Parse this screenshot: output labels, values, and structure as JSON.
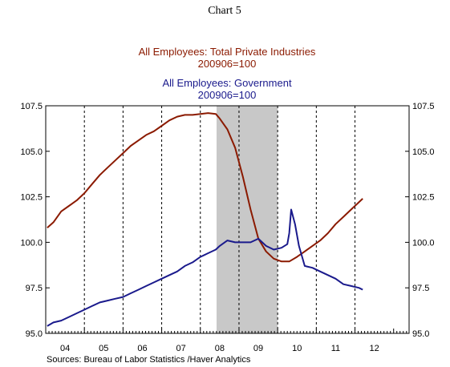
{
  "chart_data": {
    "type": "line",
    "header": "Chart 5",
    "titles": [
      {
        "text": "All Employees: Total Private Industries",
        "color": "#8b1a00"
      },
      {
        "text": "200906=100",
        "color": "#8b1a00"
      },
      {
        "text": "All Employees: Government",
        "color": "#1a1a8c"
      },
      {
        "text": "200906=100",
        "color": "#1a1a8c"
      }
    ],
    "source": "Sources:  Bureau of Labor Statistics /Haver Analytics",
    "y_axis": {
      "min": 95.0,
      "max": 107.5,
      "ticks": [
        95.0,
        97.5,
        100.0,
        102.5,
        105.0,
        107.5
      ],
      "tick_labels": [
        "95.0",
        "97.5",
        "100.0",
        "102.5",
        "105.0",
        "107.5"
      ]
    },
    "x_axis": {
      "min": 2003.5,
      "max": 2012.9,
      "year_labels": [
        "04",
        "05",
        "06",
        "07",
        "08",
        "09",
        "10",
        "11",
        "12"
      ],
      "year_label_positions": [
        2004.0,
        2005.0,
        2006.0,
        2007.0,
        2008.0,
        2009.0,
        2010.0,
        2011.0,
        2012.0
      ],
      "dashed_gridlines": [
        2004.5,
        2005.5,
        2006.5,
        2007.5,
        2008.5,
        2009.5,
        2010.5,
        2011.5
      ]
    },
    "recession": {
      "start": 2007.92,
      "end": 2009.5,
      "color": "#c8c8c8"
    },
    "series": [
      {
        "color": "#8b1a00",
        "x": [
          2003.54,
          2003.7,
          2003.9,
          2004.1,
          2004.3,
          2004.5,
          2004.7,
          2004.9,
          2005.1,
          2005.3,
          2005.5,
          2005.7,
          2005.9,
          2006.1,
          2006.3,
          2006.5,
          2006.7,
          2006.9,
          2007.1,
          2007.3,
          2007.5,
          2007.7,
          2007.9,
          2008.0,
          2008.2,
          2008.4,
          2008.6,
          2008.8,
          2009.0,
          2009.2,
          2009.4,
          2009.6,
          2009.8,
          2010.0,
          2010.2,
          2010.4,
          2010.6,
          2010.8,
          2011.0,
          2011.2,
          2011.4,
          2011.6,
          2011.7
        ],
        "values": [
          100.8,
          101.1,
          101.7,
          102.0,
          102.3,
          102.7,
          103.2,
          103.7,
          104.1,
          104.5,
          104.9,
          105.3,
          105.6,
          105.9,
          106.1,
          106.4,
          106.7,
          106.9,
          107.0,
          107.0,
          107.05,
          107.1,
          107.05,
          106.8,
          106.2,
          105.2,
          103.6,
          101.8,
          100.2,
          99.5,
          99.1,
          98.95,
          98.95,
          99.2,
          99.5,
          99.8,
          100.1,
          100.5,
          101.0,
          101.4,
          101.8,
          102.2,
          102.4
        ]
      },
      {
        "color": "#1a1a8c",
        "x": [
          2003.54,
          2003.7,
          2003.9,
          2004.1,
          2004.3,
          2004.5,
          2004.7,
          2004.9,
          2005.1,
          2005.3,
          2005.5,
          2005.7,
          2005.9,
          2006.1,
          2006.3,
          2006.5,
          2006.7,
          2006.9,
          2007.1,
          2007.3,
          2007.5,
          2007.7,
          2007.9,
          2008.0,
          2008.2,
          2008.4,
          2008.6,
          2008.8,
          2009.0,
          2009.2,
          2009.4,
          2009.6,
          2009.75,
          2009.8,
          2009.85,
          2009.95,
          2010.05,
          2010.2,
          2010.4,
          2010.6,
          2010.8,
          2011.0,
          2011.2,
          2011.4,
          2011.6,
          2011.7
        ],
        "values": [
          95.4,
          95.6,
          95.7,
          95.9,
          96.1,
          96.3,
          96.5,
          96.7,
          96.8,
          96.9,
          97.0,
          97.2,
          97.4,
          97.6,
          97.8,
          98.0,
          98.2,
          98.4,
          98.7,
          98.9,
          99.2,
          99.4,
          99.6,
          99.8,
          100.1,
          100.0,
          100.0,
          100.0,
          100.2,
          99.8,
          99.6,
          99.7,
          99.9,
          100.5,
          101.8,
          101.0,
          99.8,
          98.7,
          98.6,
          98.4,
          98.2,
          98.0,
          97.7,
          97.6,
          97.5,
          97.4
        ]
      }
    ]
  }
}
